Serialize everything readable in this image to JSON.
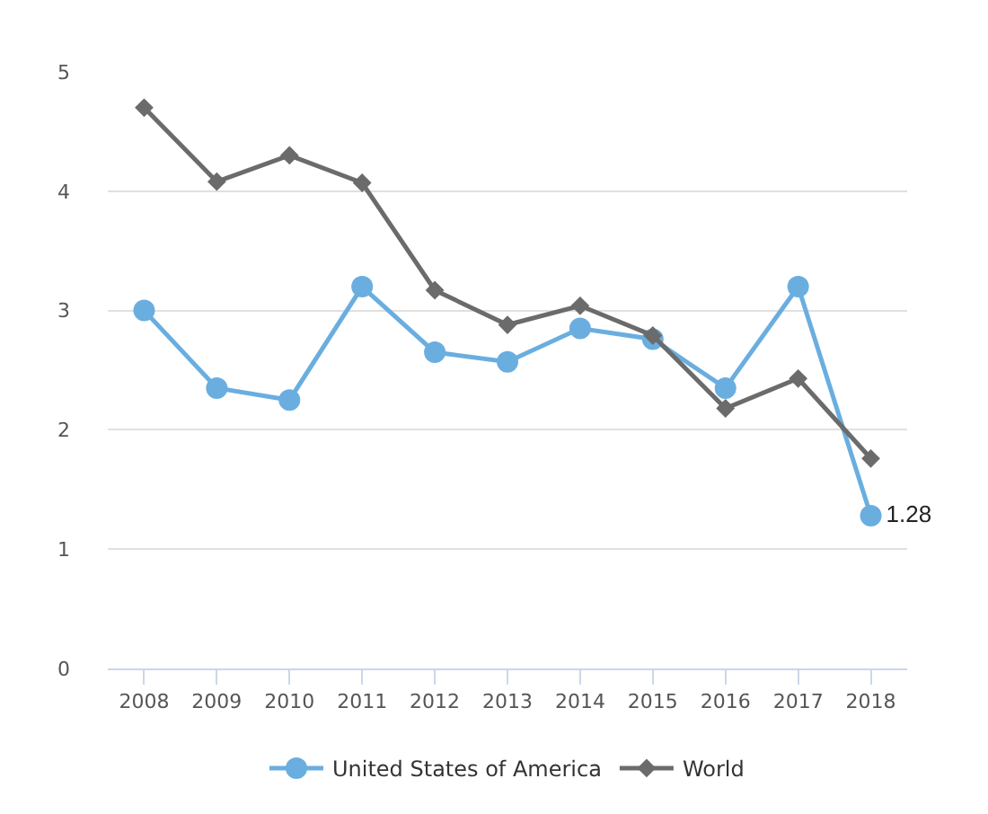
{
  "chart_data": {
    "type": "line",
    "categories": [
      "2008",
      "2009",
      "2010",
      "2011",
      "2012",
      "2013",
      "2014",
      "2015",
      "2016",
      "2017",
      "2018"
    ],
    "series": [
      {
        "name": "United States of America",
        "color": "#6aaee0",
        "marker": "circle",
        "values": [
          3.0,
          2.35,
          2.25,
          3.2,
          2.65,
          2.57,
          2.85,
          2.76,
          2.35,
          3.2,
          1.28
        ],
        "value_labels": [
          null,
          null,
          null,
          null,
          null,
          null,
          null,
          null,
          null,
          null,
          "1.28"
        ]
      },
      {
        "name": "World",
        "color": "#6b6b6b",
        "marker": "diamond",
        "values": [
          4.7,
          4.08,
          4.3,
          4.07,
          3.17,
          2.88,
          3.04,
          2.79,
          2.18,
          2.43,
          1.76
        ]
      }
    ],
    "ylim": [
      0,
      5
    ],
    "yticks": [
      0,
      1,
      2,
      3,
      4,
      5
    ],
    "grid": "y",
    "legend": "bottom"
  }
}
